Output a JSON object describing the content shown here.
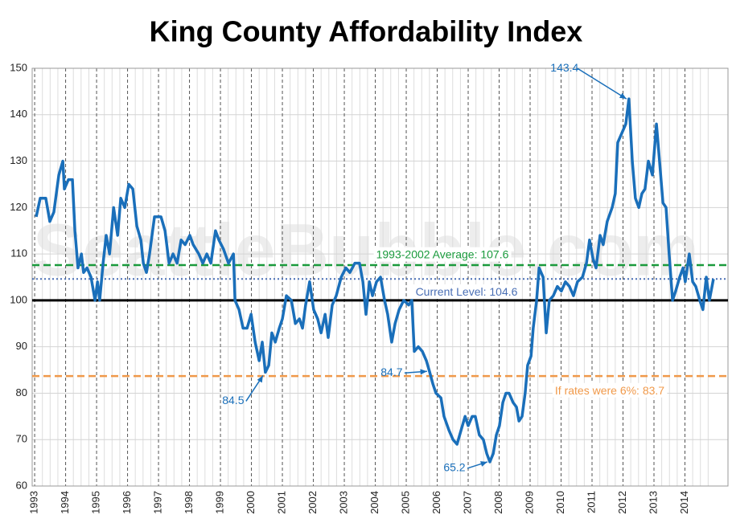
{
  "chart_data": {
    "type": "line",
    "title": "King County Affordability Index",
    "watermark": "SeattleBubble.com",
    "xlim": [
      1992.92,
      2015.39
    ],
    "xticks": [
      1993,
      1994,
      1995,
      1996,
      1997,
      1998,
      1999,
      2000,
      2001,
      2002,
      2003,
      2004,
      2005,
      2006,
      2007,
      2008,
      2009,
      2010,
      2011,
      2012,
      2013,
      2014
    ],
    "ylim": [
      60,
      150
    ],
    "yticks": [
      60,
      70,
      80,
      90,
      100,
      110,
      120,
      130,
      140,
      150
    ],
    "grid": true,
    "baseline": {
      "value": 100,
      "color": "#000000"
    },
    "reference_lines": [
      {
        "label": "1993-2002 Average: 107.6",
        "value": 107.6,
        "color": "#1a9a3c",
        "style": "dashed"
      },
      {
        "label": "Current Level: 104.6",
        "value": 104.6,
        "color": "#4a6fb5",
        "style": "dotted"
      },
      {
        "label": "If rates were 6%: 83.7",
        "value": 83.7,
        "color": "#f0994a",
        "style": "dashed"
      }
    ],
    "annotations": [
      {
        "label": "143.4",
        "x": 2012.19,
        "value": 143.4
      },
      {
        "label": "84.5",
        "x": 2000.45,
        "value": 84.5
      },
      {
        "label": "84.7",
        "x": 2005.75,
        "value": 84.7
      },
      {
        "label": "65.2",
        "x": 2007.7,
        "value": 65.2
      }
    ],
    "series": [
      {
        "color": "#1a6fba",
        "x": [
          1993.05,
          1993.18,
          1993.36,
          1993.49,
          1993.62,
          1993.7,
          1993.78,
          1993.91,
          1993.96,
          1994.09,
          1994.22,
          1994.3,
          1994.4,
          1994.51,
          1994.58,
          1994.69,
          1994.82,
          1994.95,
          1995.03,
          1995.1,
          1995.21,
          1995.31,
          1995.42,
          1995.55,
          1995.68,
          1995.78,
          1995.91,
          1996.04,
          1996.17,
          1996.3,
          1996.43,
          1996.51,
          1996.61,
          1996.71,
          1996.87,
          1997.08,
          1997.21,
          1997.34,
          1997.47,
          1997.6,
          1997.73,
          1997.86,
          1998.01,
          1998.12,
          1998.3,
          1998.43,
          1998.56,
          1998.69,
          1998.84,
          1998.95,
          1999.1,
          1999.26,
          1999.42,
          1999.47,
          1999.6,
          1999.73,
          1999.86,
          1999.99,
          2000.12,
          2000.25,
          2000.35,
          2000.45,
          2000.56,
          2000.66,
          2000.77,
          2000.9,
          2001.0,
          2001.13,
          2001.29,
          2001.42,
          2001.55,
          2001.65,
          2001.75,
          2001.88,
          2002.01,
          2002.14,
          2002.25,
          2002.38,
          2002.48,
          2002.61,
          2002.74,
          2002.9,
          2003.05,
          2003.18,
          2003.34,
          2003.49,
          2003.6,
          2003.7,
          2003.81,
          2003.91,
          2004.04,
          2004.17,
          2004.3,
          2004.4,
          2004.53,
          2004.64,
          2004.77,
          2004.92,
          2005.08,
          2005.18,
          2005.26,
          2005.39,
          2005.52,
          2005.65,
          2005.75,
          2005.86,
          2005.96,
          2006.12,
          2006.22,
          2006.38,
          2006.51,
          2006.64,
          2006.77,
          2006.9,
          2007.0,
          2007.13,
          2007.23,
          2007.36,
          2007.49,
          2007.6,
          2007.7,
          2007.81,
          2007.91,
          2008.01,
          2008.12,
          2008.22,
          2008.32,
          2008.45,
          2008.56,
          2008.64,
          2008.74,
          2008.84,
          2008.92,
          2009.03,
          2009.1,
          2009.21,
          2009.29,
          2009.42,
          2009.52,
          2009.62,
          2009.75,
          2009.88,
          2010.01,
          2010.14,
          2010.27,
          2010.4,
          2010.53,
          2010.69,
          2010.82,
          2010.92,
          2011.03,
          2011.13,
          2011.26,
          2011.36,
          2011.49,
          2011.65,
          2011.75,
          2011.83,
          2011.96,
          2012.09,
          2012.19,
          2012.3,
          2012.4,
          2012.51,
          2012.61,
          2012.71,
          2012.82,
          2012.95,
          2013.08,
          2013.18,
          2013.29,
          2013.39,
          2013.49,
          2013.6,
          2013.7,
          2013.83,
          2013.94,
          2014.01,
          2014.14,
          2014.25,
          2014.35,
          2014.48,
          2014.58,
          2014.69,
          2014.79,
          2014.92
        ],
        "values": [
          118,
          122,
          122,
          117,
          119,
          123,
          127,
          130,
          124,
          126,
          126,
          115,
          107,
          110,
          106,
          107,
          105,
          100,
          104,
          100,
          108,
          114,
          110,
          120,
          114,
          122,
          120,
          125,
          124,
          116,
          113,
          108,
          106,
          110,
          118,
          118,
          115,
          108,
          110,
          108,
          113,
          112,
          114,
          112,
          110,
          108,
          110,
          108,
          115,
          113,
          111,
          108,
          110,
          100,
          98,
          94,
          94,
          97,
          91,
          87,
          91,
          84.5,
          86,
          93,
          91,
          94,
          96,
          101,
          100,
          95,
          96,
          94,
          99,
          104,
          98,
          96,
          93,
          97,
          92,
          99,
          101,
          105,
          107,
          106,
          108,
          108,
          104,
          97,
          104,
          101,
          104,
          105,
          100,
          97,
          91,
          95,
          98,
          100,
          99,
          100,
          89,
          90,
          89,
          87,
          84.7,
          82,
          80,
          79,
          75,
          72,
          70,
          69,
          72,
          75,
          73,
          75,
          75,
          71,
          70,
          67,
          65.2,
          67,
          71,
          73,
          78,
          80,
          80,
          78,
          77,
          74,
          75,
          80,
          86,
          88,
          94,
          100,
          107,
          105,
          93,
          100,
          101,
          103,
          102,
          104,
          103,
          101,
          104,
          105,
          108,
          113,
          109,
          107,
          114,
          112,
          117,
          120,
          123,
          134,
          136,
          138,
          143.4,
          130,
          122,
          120,
          123,
          124,
          130,
          127,
          138,
          130,
          121,
          120,
          110,
          100,
          102,
          105,
          107,
          104,
          110,
          104,
          103,
          100,
          98,
          105,
          100,
          104.6
        ]
      }
    ]
  }
}
